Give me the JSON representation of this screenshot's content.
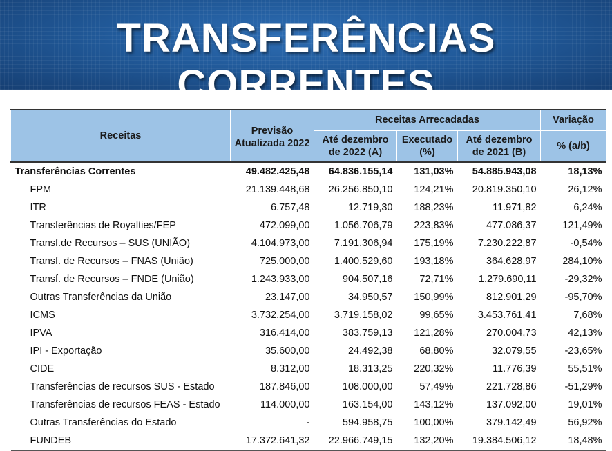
{
  "title": "TRANSFERÊNCIAS CORRENTES",
  "table": {
    "headers": {
      "receitas": "Receitas",
      "previsao": "Previsão Atualizada 2022",
      "arrecadadas": "Receitas Arrecadadas",
      "ate2022": "Até dezembro de 2022 (A)",
      "executado": "Executado (%)",
      "ate2021": "Até dezembro de 2021 (B)",
      "variacao": "Variação",
      "variacao_sub": "% (a/b)"
    },
    "rows": [
      {
        "name": "Transferências Correntes",
        "previsao": "49.482.425,48",
        "a2022": "64.836.155,14",
        "exec": "131,03%",
        "a2021": "54.885.943,08",
        "var": "18,13%"
      },
      {
        "name": "FPM",
        "previsao": "21.139.448,68",
        "a2022": "26.256.850,10",
        "exec": "124,21%",
        "a2021": "20.819.350,10",
        "var": "26,12%"
      },
      {
        "name": "ITR",
        "previsao": "6.757,48",
        "a2022": "12.719,30",
        "exec": "188,23%",
        "a2021": "11.971,82",
        "var": "6,24%"
      },
      {
        "name": "Transferências de Royalties/FEP",
        "previsao": "472.099,00",
        "a2022": "1.056.706,79",
        "exec": "223,83%",
        "a2021": "477.086,37",
        "var": "121,49%"
      },
      {
        "name": "Transf.de Recursos – SUS (UNIÃO)",
        "previsao": "4.104.973,00",
        "a2022": "7.191.306,94",
        "exec": "175,19%",
        "a2021": "7.230.222,87",
        "var": "-0,54%"
      },
      {
        "name": "Transf. de Recursos – FNAS (União)",
        "previsao": "725.000,00",
        "a2022": "1.400.529,60",
        "exec": "193,18%",
        "a2021": "364.628,97",
        "var": "284,10%"
      },
      {
        "name": "Transf. de Recursos – FNDE (União)",
        "previsao": "1.243.933,00",
        "a2022": "904.507,16",
        "exec": "72,71%",
        "a2021": "1.279.690,11",
        "var": "-29,32%"
      },
      {
        "name": "Outras Transferências da União",
        "previsao": "23.147,00",
        "a2022": "34.950,57",
        "exec": "150,99%",
        "a2021": "812.901,29",
        "var": "-95,70%"
      },
      {
        "name": "ICMS",
        "previsao": "3.732.254,00",
        "a2022": "3.719.158,02",
        "exec": "99,65%",
        "a2021": "3.453.761,41",
        "var": "7,68%"
      },
      {
        "name": "IPVA",
        "previsao": "316.414,00",
        "a2022": "383.759,13",
        "exec": "121,28%",
        "a2021": "270.004,73",
        "var": "42,13%"
      },
      {
        "name": "IPI - Exportação",
        "previsao": "35.600,00",
        "a2022": "24.492,38",
        "exec": "68,80%",
        "a2021": "32.079,55",
        "var": "-23,65%"
      },
      {
        "name": "CIDE",
        "previsao": "8.312,00",
        "a2022": "18.313,25",
        "exec": "220,32%",
        "a2021": "11.776,39",
        "var": "55,51%"
      },
      {
        "name": "Transferências de recursos SUS - Estado",
        "previsao": "187.846,00",
        "a2022": "108.000,00",
        "exec": "57,49%",
        "a2021": "221.728,86",
        "var": "-51,29%"
      },
      {
        "name": "Transferências de recursos FEAS - Estado",
        "previsao": "114.000,00",
        "a2022": "163.154,00",
        "exec": "143,12%",
        "a2021": "137.092,00",
        "var": "19,01%"
      },
      {
        "name": "Outras Transferências do Estado",
        "previsao": "-",
        "a2022": "594.958,75",
        "exec": "100,00%",
        "a2021": "379.142,49",
        "var": "56,92%"
      },
      {
        "name": "FUNDEB",
        "previsao": "17.372.641,32",
        "a2022": "22.966.749,15",
        "exec": "132,20%",
        "a2021": "19.384.506,12",
        "var": "18,48%"
      }
    ]
  }
}
